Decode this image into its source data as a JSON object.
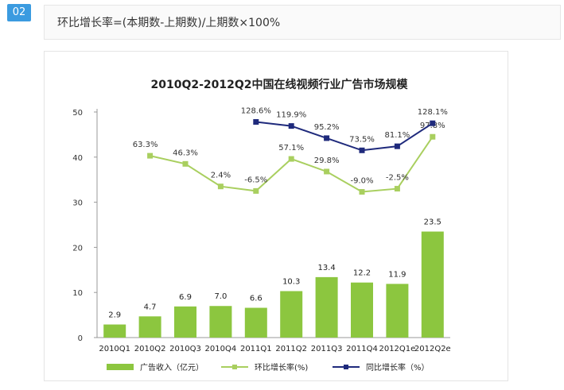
{
  "badge": "02",
  "formula": "环比增长率=(本期数-上期数)/上期数×100%",
  "chart_data": {
    "type": "bar",
    "title": "2010Q2-2012Q2中国在线视频行业广告市场规模",
    "categories": [
      "2010Q1",
      "2010Q2",
      "2010Q3",
      "2010Q4",
      "2011Q1",
      "2011Q2",
      "2011Q3",
      "2011Q4",
      "2012Q1e",
      "2012Q2e"
    ],
    "ylim": [
      0,
      50
    ],
    "yticks": [
      0,
      10,
      20,
      30,
      40,
      50
    ],
    "grid": false,
    "legend_position": "bottom",
    "series": [
      {
        "name": "广告收入（亿元）",
        "type": "bar",
        "color": "#8cc63f",
        "values": [
          2.9,
          4.7,
          6.9,
          7.0,
          6.6,
          10.3,
          13.4,
          12.2,
          11.9,
          23.5
        ],
        "labels": [
          "2.9",
          "4.7",
          "6.9",
          "7.0",
          "6.6",
          "10.3",
          "13.4",
          "12.2",
          "11.9",
          "23.5"
        ]
      },
      {
        "name": "环比增长率(%)",
        "type": "line",
        "color": "#a9cf5f",
        "values": [
          null,
          40.3,
          38.5,
          33.5,
          32.5,
          39.6,
          36.8,
          32.3,
          33.0,
          44.5
        ],
        "labels": [
          null,
          "63.3%",
          "46.3%",
          "2.4%",
          "-6.5%",
          "57.1%",
          "29.8%",
          "-9.0%",
          "-2.5%",
          "97.8%"
        ]
      },
      {
        "name": "同比增长率（%）",
        "type": "line",
        "color": "#1f2a7c",
        "values": [
          null,
          null,
          null,
          null,
          47.8,
          46.9,
          44.2,
          41.5,
          42.4,
          47.5
        ],
        "labels": [
          null,
          null,
          null,
          null,
          "128.6%",
          "119.9%",
          "95.2%",
          "73.5%",
          "81.1%",
          "128.1%"
        ]
      }
    ]
  }
}
